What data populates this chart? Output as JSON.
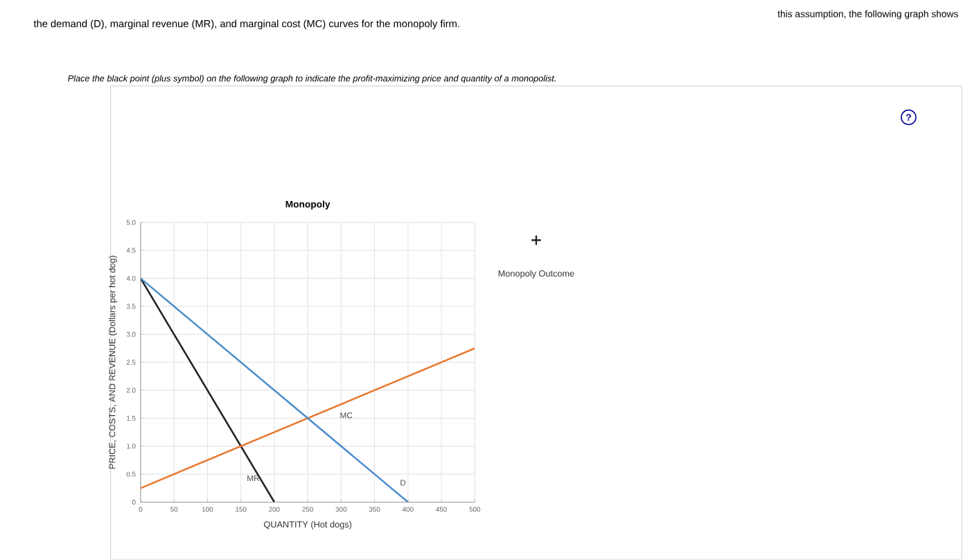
{
  "chart_data": {
    "type": "line",
    "title": "Monopoly",
    "xlabel": "QUANTITY (Hot dogs)",
    "ylabel": "PRICE, COSTS, AND REVENUE (Dollars per hot dog)",
    "annotations": [
      "this assumption, the following graph shows",
      "the demand (D), marginal revenue (MR), and marginal cost (MC) curves for the monopoly firm.",
      "Place the black point (plus symbol) on the following graph to indicate the profit-maximizing price and quantity of a monopolist.",
      "?"
    ],
    "series": [
      {
        "name": "MR",
        "color": "#222222",
        "x": [
          0,
          200
        ],
        "values": [
          4,
          0
        ]
      },
      {
        "name": "MC",
        "color": "#e8792e",
        "x": [
          0,
          500
        ],
        "values": [
          0.25,
          2.75
        ]
      },
      {
        "name": "D",
        "color": "#4f8fcc",
        "x": [
          0,
          400
        ],
        "values": [
          4,
          0
        ]
      },
      {
        "name": "Monopoly Outcome",
        "type": "scatter",
        "color": "#222222",
        "marker": "cross"
      }
    ],
    "xlim": [
      0,
      500
    ],
    "ylim": [
      0,
      5
    ],
    "xticks": [
      0,
      50,
      100,
      150,
      200,
      250,
      300,
      350,
      400,
      450,
      500
    ],
    "yticks": [
      0,
      {
        "value": 0.5,
        "label": "0.5"
      },
      {
        "value": 1,
        "label": "1.0"
      },
      {
        "value": 1.5,
        "label": "1.5"
      },
      {
        "value": 2,
        "label": "2.0"
      },
      {
        "value": 2.5,
        "label": "2.5"
      },
      {
        "value": 3,
        "label": "3.0"
      },
      {
        "value": 3.5,
        "label": "3.5"
      },
      {
        "value": 4,
        "label": "4.0"
      },
      {
        "value": 4.5,
        "label": "4.5"
      },
      {
        "value": 5,
        "label": "5.0"
      }
    ],
    "grid": true,
    "legend": "right"
  }
}
